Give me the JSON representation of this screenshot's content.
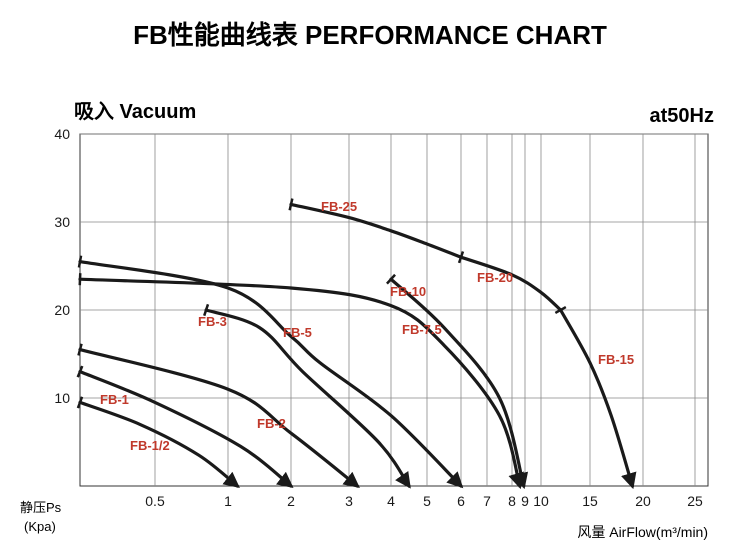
{
  "chart_data": {
    "type": "line",
    "title": "FB性能曲线表 PERFORMANCE CHART",
    "subtitle_left": "吸入 Vacuum",
    "subtitle_right": "at50Hz",
    "ylabel": "静压Ps",
    "ylabel_unit": "(Kpa)",
    "xlabel": "风量 AirFlow(m³/min)",
    "ylim": [
      0,
      40
    ],
    "y_ticks": [
      10,
      20,
      30,
      40
    ],
    "x_ticks": [
      "0.5",
      "1",
      "2",
      "3",
      "4",
      "5",
      "6",
      "7",
      "8",
      "9",
      "10",
      "15",
      "20",
      "25"
    ],
    "x_scale": "nonlinear",
    "grid": true,
    "series": [
      {
        "name": "FB-1/2",
        "x": [
          0,
          0.4,
          0.8,
          1.15
        ],
        "y": [
          9.5,
          7,
          3.5,
          0
        ]
      },
      {
        "name": "FB-1",
        "x": [
          0,
          0.5,
          1.2,
          2.0
        ],
        "y": [
          13,
          9.5,
          4.5,
          0
        ]
      },
      {
        "name": "FB-2",
        "x": [
          0,
          1,
          2,
          3.2
        ],
        "y": [
          15.5,
          11,
          6,
          0
        ]
      },
      {
        "name": "FB-3",
        "x": [
          0.85,
          1.5,
          2.2,
          3.7,
          4.5
        ],
        "y": [
          20,
          18,
          13,
          5,
          0
        ]
      },
      {
        "name": "FB-5",
        "x": [
          0,
          1,
          2,
          2.5,
          4,
          6.0
        ],
        "y": [
          25.5,
          22.5,
          17,
          14,
          8,
          0
        ]
      },
      {
        "name": "FB-7.5",
        "x": [
          0,
          2,
          4,
          5.5,
          7.5,
          8.6
        ],
        "y": [
          23.5,
          22.5,
          20.5,
          16,
          8,
          0
        ]
      },
      {
        "name": "FB-10",
        "x": [
          4,
          5.5,
          7.5,
          8.9
        ],
        "y": [
          23.5,
          18,
          10,
          0
        ]
      },
      {
        "name": "FB-25",
        "x": [
          2,
          3,
          4,
          5,
          6
        ],
        "y": [
          32,
          30.5,
          29,
          27.5,
          26
        ]
      },
      {
        "name": "FB-20",
        "x": [
          6,
          8,
          10,
          12
        ],
        "y": [
          26,
          24,
          22,
          20
        ]
      },
      {
        "name": "FB-15",
        "x": [
          12,
          15,
          17,
          19
        ],
        "y": [
          20,
          14,
          8,
          0
        ]
      }
    ]
  }
}
